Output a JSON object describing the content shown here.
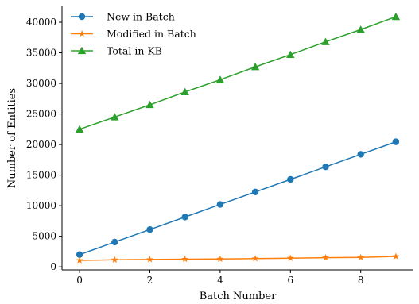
{
  "chart_data": {
    "type": "line",
    "xlabel": "Batch Number",
    "ylabel": "Number of Entities",
    "xlim": [
      -0.5,
      9.5
    ],
    "ylim": [
      -500,
      42600
    ],
    "x_ticks": [
      0,
      2,
      4,
      6,
      8
    ],
    "y_ticks": [
      0,
      5000,
      10000,
      15000,
      20000,
      25000,
      30000,
      35000,
      40000
    ],
    "grid": false,
    "legend_position": "top-left",
    "x": [
      0,
      1,
      2,
      3,
      4,
      5,
      6,
      7,
      8,
      9
    ],
    "series": [
      {
        "name": "New in Batch",
        "marker": "circle",
        "color": "#1f77b4",
        "values": [
          2000,
          4050,
          6100,
          8150,
          10200,
          12250,
          14300,
          16350,
          18400,
          20450
        ]
      },
      {
        "name": "Modified in Batch",
        "marker": "star",
        "color": "#ff7f0e",
        "values": [
          1050,
          1150,
          1200,
          1250,
          1280,
          1350,
          1420,
          1500,
          1550,
          1700
        ]
      },
      {
        "name": "Total in KB",
        "marker": "triangle",
        "color": "#2ca02c",
        "values": [
          22500,
          24500,
          26500,
          28600,
          30600,
          32700,
          34700,
          36800,
          38800,
          40900
        ]
      }
    ]
  }
}
